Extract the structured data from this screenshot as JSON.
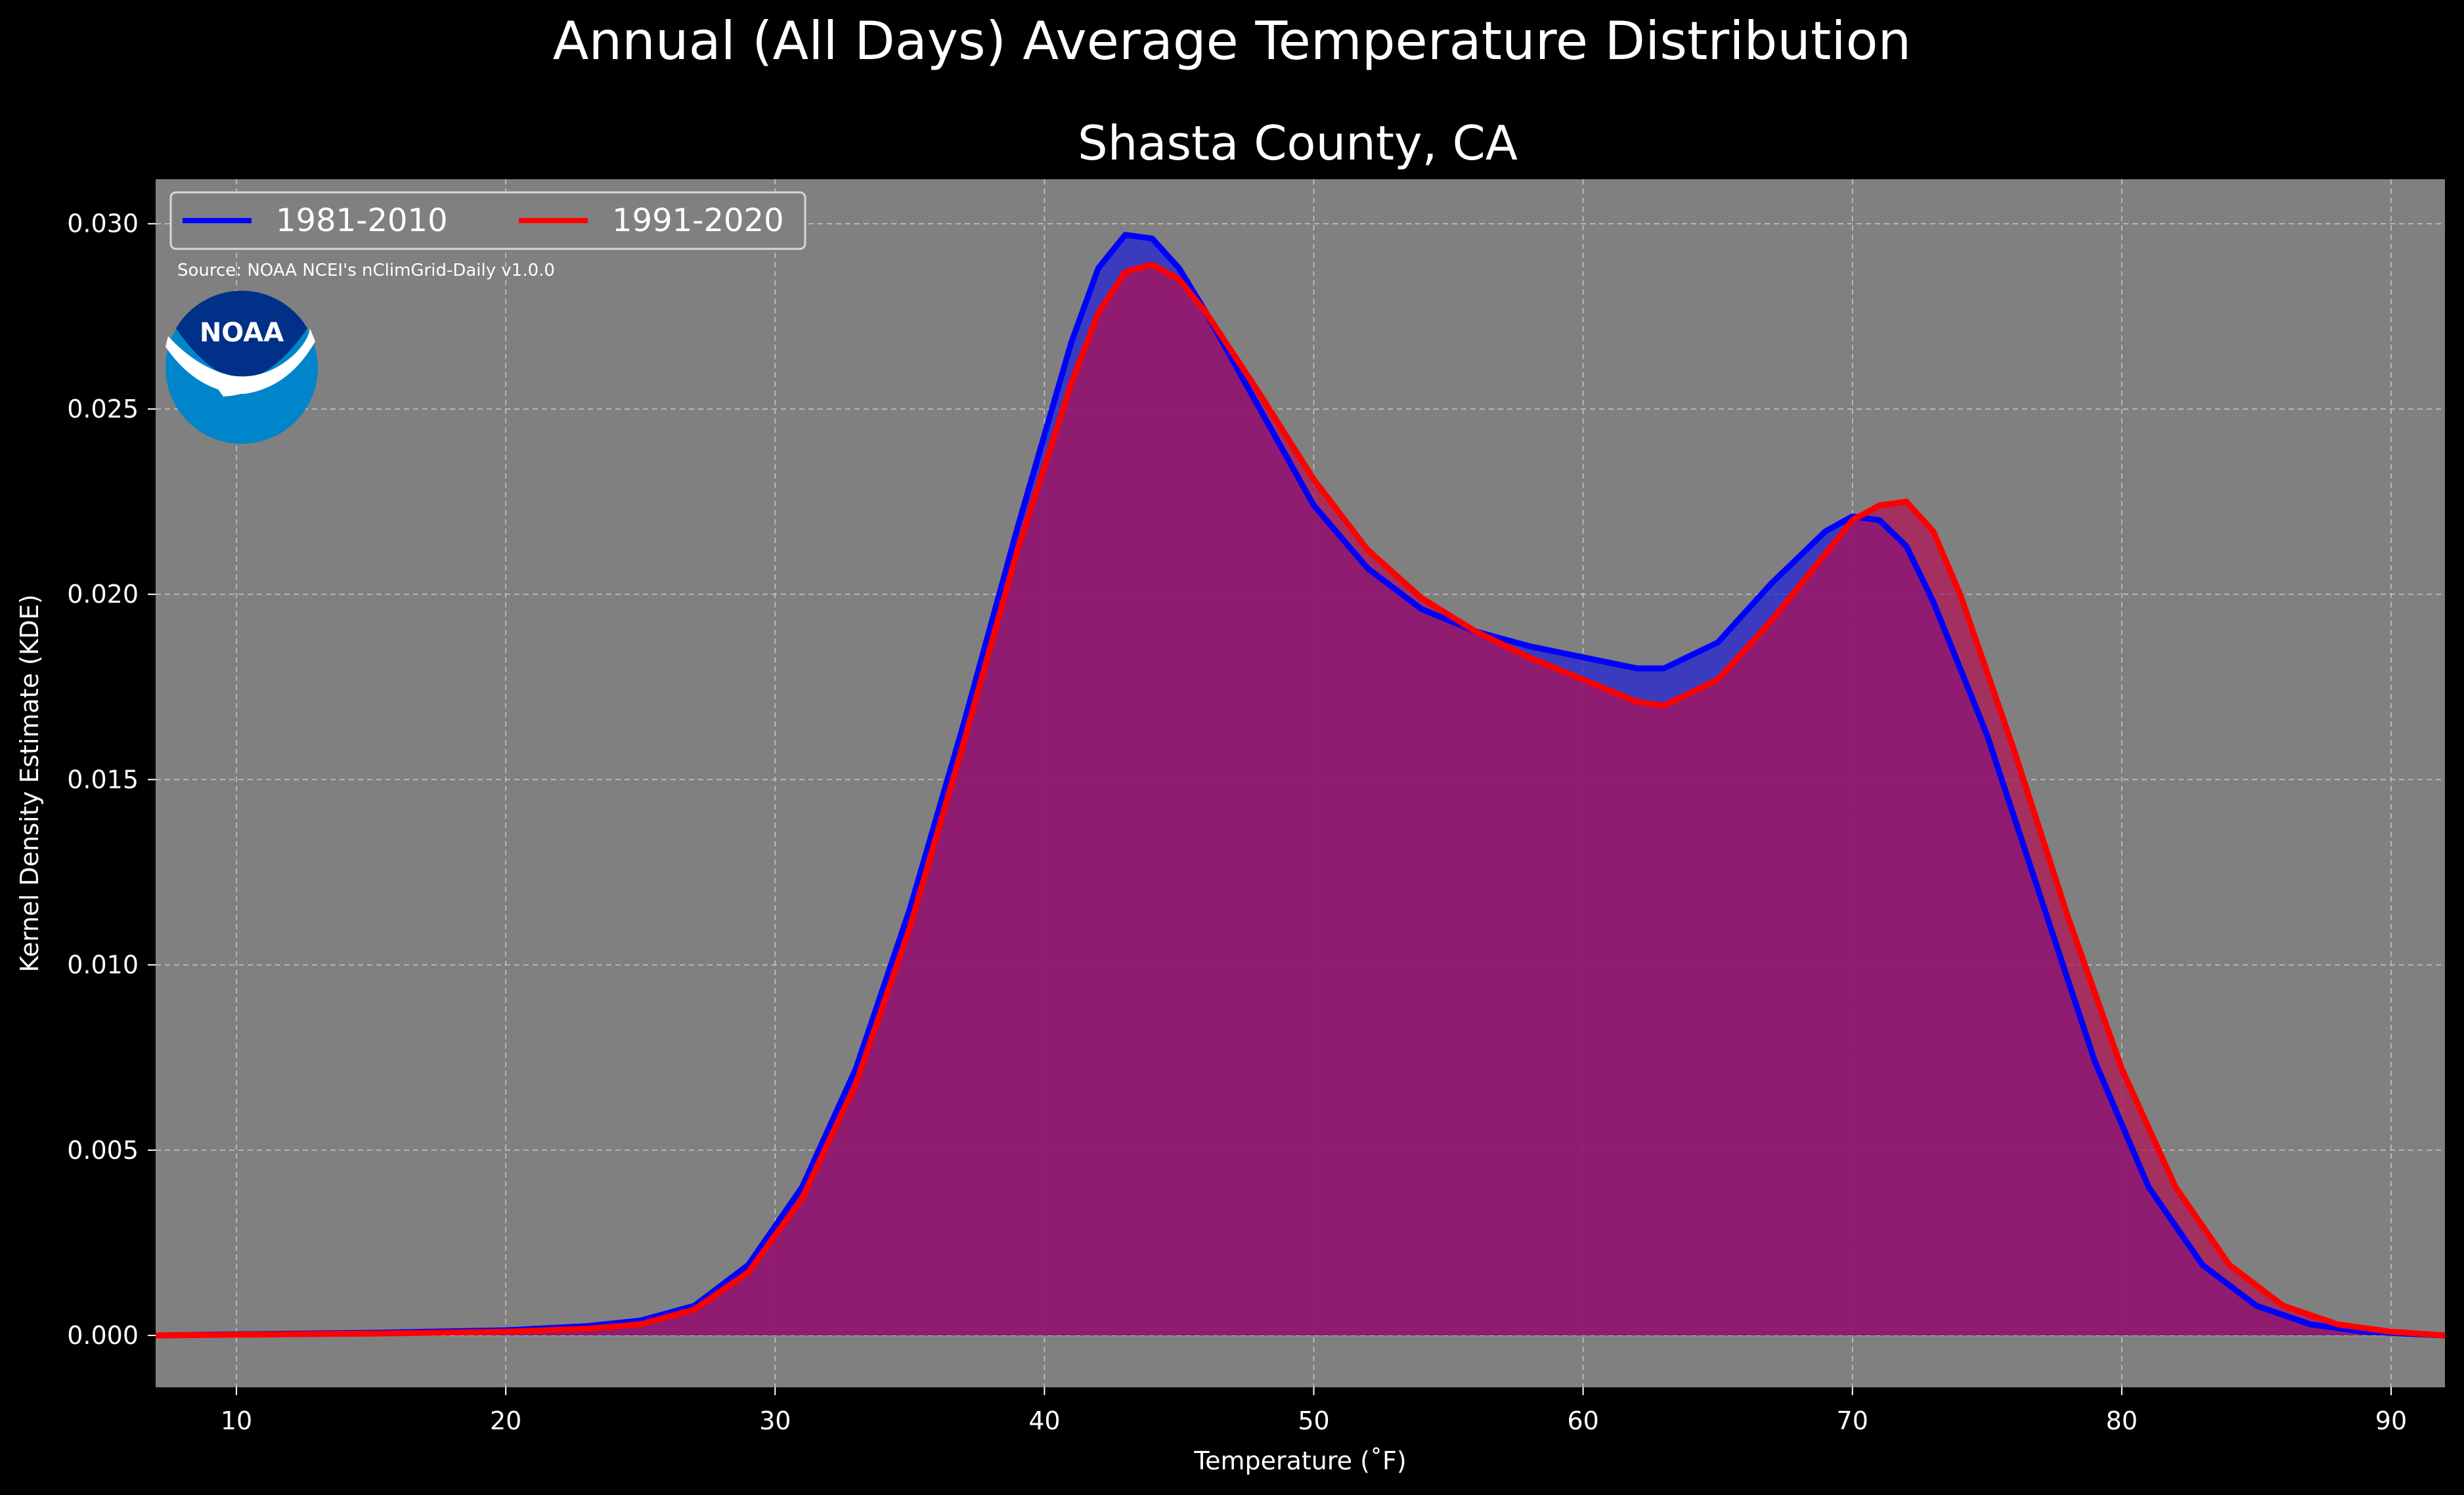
{
  "chart_data": {
    "type": "area",
    "suptitle": "Annual (All Days) Average Temperature Distribution",
    "title": "Shasta County, CA",
    "xlabel": "Temperature (˚F)",
    "ylabel": "Kernel Density Estimate (KDE)",
    "xlim": [
      7,
      92
    ],
    "ylim": [
      -0.0014,
      0.0312
    ],
    "xticks": [
      10,
      20,
      30,
      40,
      50,
      60,
      70,
      80,
      90
    ],
    "yticks": [
      0.0,
      0.005,
      0.01,
      0.015,
      0.02,
      0.025,
      0.03
    ],
    "ytick_labels": [
      "0.000",
      "0.005",
      "0.010",
      "0.015",
      "0.020",
      "0.025",
      "0.030"
    ],
    "grid": true,
    "legend_position": "top-left",
    "source_note": "Source: NOAA NCEI's nClimGrid-Daily v1.0.0",
    "logo_text": "NOAA",
    "background_color": "#808080",
    "figure_color": "#000000",
    "series": [
      {
        "name": "1981-2010",
        "color": "#0000ff",
        "fill": "#2020d8",
        "points": [
          [
            7,
            0
          ],
          [
            10,
            3e-05
          ],
          [
            15,
            7e-05
          ],
          [
            20,
            0.00014
          ],
          [
            23,
            0.00025
          ],
          [
            25,
            0.0004
          ],
          [
            27,
            0.0008
          ],
          [
            29,
            0.0019
          ],
          [
            31,
            0.004
          ],
          [
            33,
            0.0072
          ],
          [
            35,
            0.0115
          ],
          [
            37,
            0.0165
          ],
          [
            39,
            0.0218
          ],
          [
            41,
            0.0268
          ],
          [
            42,
            0.0288
          ],
          [
            43,
            0.0297
          ],
          [
            44,
            0.0296
          ],
          [
            45,
            0.0288
          ],
          [
            46,
            0.0276
          ],
          [
            48,
            0.025
          ],
          [
            50,
            0.0224
          ],
          [
            52,
            0.0207
          ],
          [
            54,
            0.0196
          ],
          [
            56,
            0.019
          ],
          [
            58,
            0.0186
          ],
          [
            60,
            0.0183
          ],
          [
            62,
            0.018
          ],
          [
            63,
            0.018
          ],
          [
            65,
            0.0187
          ],
          [
            67,
            0.0203
          ],
          [
            69,
            0.0217
          ],
          [
            70,
            0.0221
          ],
          [
            71,
            0.022
          ],
          [
            72,
            0.0213
          ],
          [
            73,
            0.0198
          ],
          [
            75,
            0.0162
          ],
          [
            77,
            0.0118
          ],
          [
            79,
            0.0074
          ],
          [
            81,
            0.004
          ],
          [
            83,
            0.0019
          ],
          [
            85,
            0.0008
          ],
          [
            87,
            0.0003
          ],
          [
            89,
            0.0001
          ],
          [
            92,
            0
          ]
        ]
      },
      {
        "name": "1991-2020",
        "color": "#ff0000",
        "fill": "#b01050",
        "points": [
          [
            7,
            0
          ],
          [
            10,
            2e-05
          ],
          [
            15,
            5e-05
          ],
          [
            20,
            0.0001
          ],
          [
            23,
            0.00018
          ],
          [
            25,
            0.0003
          ],
          [
            27,
            0.0007
          ],
          [
            29,
            0.0017
          ],
          [
            31,
            0.0037
          ],
          [
            33,
            0.0068
          ],
          [
            35,
            0.011
          ],
          [
            37,
            0.016
          ],
          [
            39,
            0.0212
          ],
          [
            41,
            0.0257
          ],
          [
            42,
            0.0276
          ],
          [
            43,
            0.0287
          ],
          [
            44,
            0.0289
          ],
          [
            45,
            0.0285
          ],
          [
            46,
            0.0276
          ],
          [
            48,
            0.0254
          ],
          [
            50,
            0.0231
          ],
          [
            52,
            0.0212
          ],
          [
            54,
            0.0199
          ],
          [
            56,
            0.019
          ],
          [
            58,
            0.0183
          ],
          [
            60,
            0.0177
          ],
          [
            62,
            0.0171
          ],
          [
            63,
            0.017
          ],
          [
            65,
            0.0177
          ],
          [
            67,
            0.0193
          ],
          [
            69,
            0.0211
          ],
          [
            70,
            0.022
          ],
          [
            71,
            0.0224
          ],
          [
            72,
            0.0225
          ],
          [
            73,
            0.0217
          ],
          [
            74,
            0.02
          ],
          [
            76,
            0.0158
          ],
          [
            78,
            0.0113
          ],
          [
            80,
            0.0072
          ],
          [
            82,
            0.004
          ],
          [
            84,
            0.0019
          ],
          [
            86,
            0.0008
          ],
          [
            88,
            0.0003
          ],
          [
            90,
            0.0001
          ],
          [
            92,
            0
          ]
        ]
      }
    ]
  }
}
